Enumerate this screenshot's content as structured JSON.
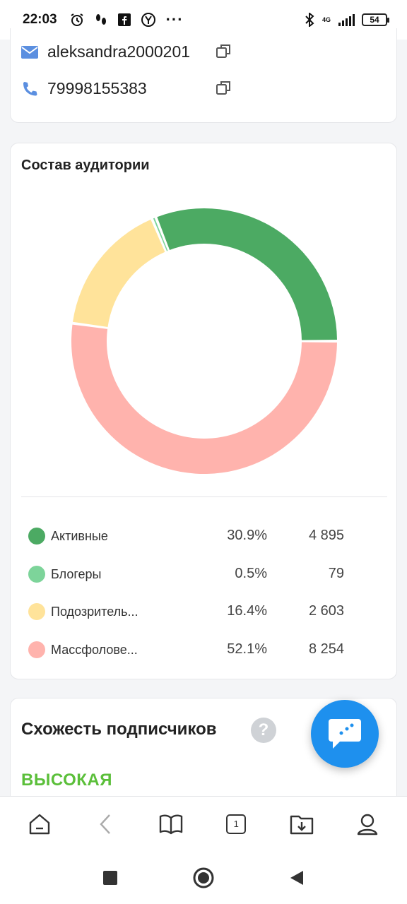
{
  "status_bar": {
    "time": "22:03",
    "network": "4G",
    "battery": "54"
  },
  "contact": {
    "email": "aleksandra2000201",
    "phone": "79998155383"
  },
  "audience": {
    "title": "Состав аудитории",
    "items": [
      {
        "name": "Активные",
        "percent": "30.9%",
        "count": "4 895",
        "color": "#4caa63",
        "share": 30.9
      },
      {
        "name": "Блогеры",
        "percent": "0.5%",
        "count": "79",
        "color": "#7dd49a",
        "share": 0.5
      },
      {
        "name": "Подозритель...",
        "percent": "16.4%",
        "count": "2 603",
        "color": "#ffe39a",
        "share": 16.4
      },
      {
        "name": "Массфолове...",
        "percent": "52.1%",
        "count": "8 254",
        "color": "#ffb3ad",
        "share": 52.1
      }
    ]
  },
  "similarity": {
    "title": "Схожесть подписчиков",
    "help": "?",
    "value": "ВЫСОКАЯ"
  },
  "colors": {
    "accent_blue": "#1e90ee",
    "high_green": "#5bbf3a"
  },
  "icons": {
    "email": "mail-icon",
    "phone": "phone-icon",
    "copy": "copy-icon",
    "chat": "chat-icon"
  }
}
